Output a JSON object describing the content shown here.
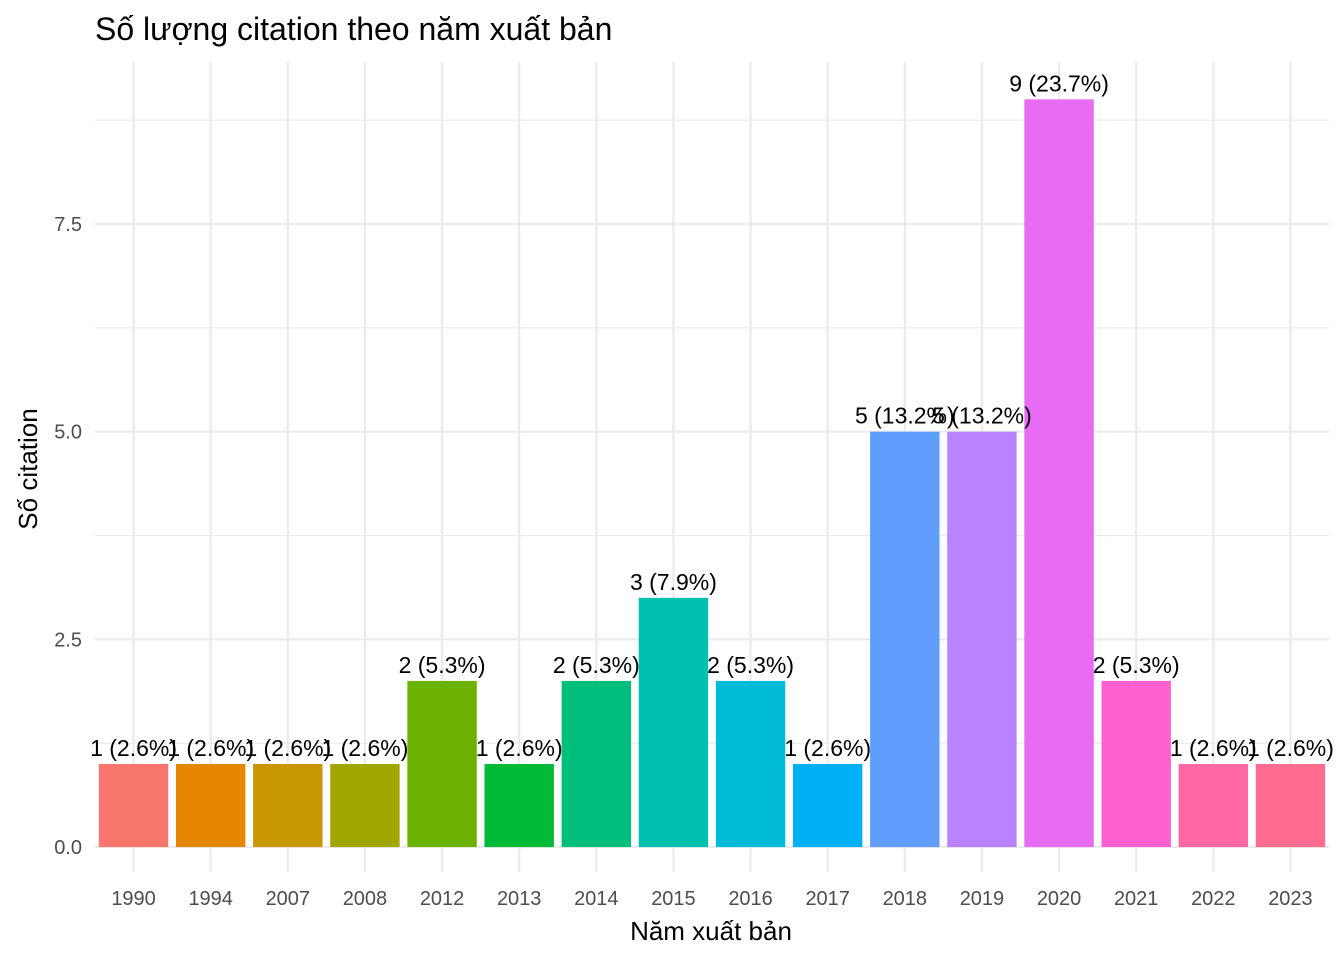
{
  "chart_data": {
    "type": "bar",
    "title": "Số lượng citation theo năm xuất bản",
    "xlabel": "Năm xuất bản",
    "ylabel": "Số citation",
    "categories": [
      "1990",
      "1994",
      "2007",
      "2008",
      "2012",
      "2013",
      "2014",
      "2015",
      "2016",
      "2017",
      "2018",
      "2019",
      "2020",
      "2021",
      "2022",
      "2023"
    ],
    "values": [
      1,
      1,
      1,
      1,
      2,
      1,
      2,
      3,
      2,
      1,
      5,
      5,
      9,
      2,
      1,
      1
    ],
    "data_labels": [
      "1 (2.6%)",
      "1 (2.6%)",
      "1 (2.6%)",
      "1 (2.6%)",
      "2 (5.3%)",
      "1 (2.6%)",
      "2 (5.3%)",
      "3 (7.9%)",
      "2 (5.3%)",
      "1 (2.6%)",
      "5 (13.2%)",
      "5 (13.2%)",
      "9 (23.7%)",
      "2 (5.3%)",
      "1 (2.6%)",
      "1 (2.6%)"
    ],
    "colors": [
      "#F8766D",
      "#E58700",
      "#C99800",
      "#A3A500",
      "#6BB100",
      "#00BA38",
      "#00BF7D",
      "#00C0AF",
      "#00BCD8",
      "#00B0F6",
      "#619CFF",
      "#B983FF",
      "#E76BF3",
      "#FD61D1",
      "#FF67A4",
      "#FF6C90"
    ],
    "yticks": [
      "0.0",
      "2.5",
      "5.0",
      "7.5"
    ],
    "ytick_values": [
      0,
      2.5,
      5,
      7.5
    ],
    "ylim": [
      -0.3,
      9.45
    ],
    "grid": true,
    "legend": "none"
  }
}
